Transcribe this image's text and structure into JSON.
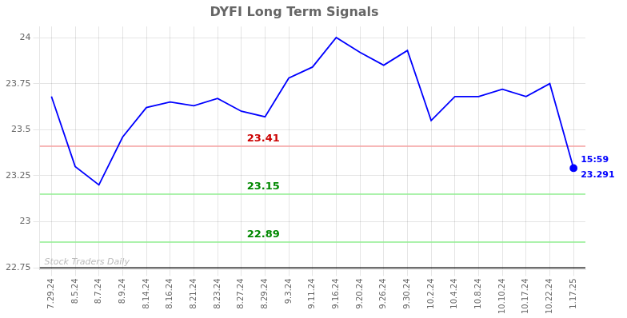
{
  "chart_data": {
    "type": "line",
    "title": "DYFI Long Term Signals",
    "categories": [
      "7.29.24",
      "8.5.24",
      "8.7.24",
      "8.9.24",
      "8.14.24",
      "8.16.24",
      "8.21.24",
      "8.23.24",
      "8.27.24",
      "8.29.24",
      "9.3.24",
      "9.11.24",
      "9.16.24",
      "9.20.24",
      "9.26.24",
      "9.30.24",
      "10.2.24",
      "10.4.24",
      "10.8.24",
      "10.10.24",
      "10.17.24",
      "10.22.24",
      "1.17.25"
    ],
    "values": [
      23.68,
      23.3,
      23.2,
      23.46,
      23.62,
      23.65,
      23.63,
      23.67,
      23.6,
      23.57,
      23.78,
      23.84,
      24.0,
      23.92,
      23.85,
      23.93,
      23.55,
      23.68,
      23.68,
      23.72,
      23.68,
      23.75,
      23.291
    ],
    "color": "blue",
    "ylim": [
      22.74,
      24.06
    ],
    "yticks": [
      22.75,
      23,
      23.25,
      23.5,
      23.75,
      24
    ],
    "grid": true,
    "hlines": [
      {
        "y": 23.41,
        "color": "#f4a0a0",
        "label": "23.41",
        "label_color": "#cc0000"
      },
      {
        "y": 23.15,
        "color": "#90ee90",
        "label": "23.15",
        "label_color": "#008800"
      },
      {
        "y": 22.89,
        "color": "#90ee90",
        "label": "22.89",
        "label_color": "#008800"
      },
      {
        "y": 22.75,
        "color": "#222222",
        "watermark": "Stock Traders Daily",
        "watermark_color": "#bbbbbb"
      }
    ],
    "end_labels": [
      {
        "text": "15:59",
        "color": "blue"
      },
      {
        "text": "23.291",
        "color": "blue"
      }
    ]
  }
}
